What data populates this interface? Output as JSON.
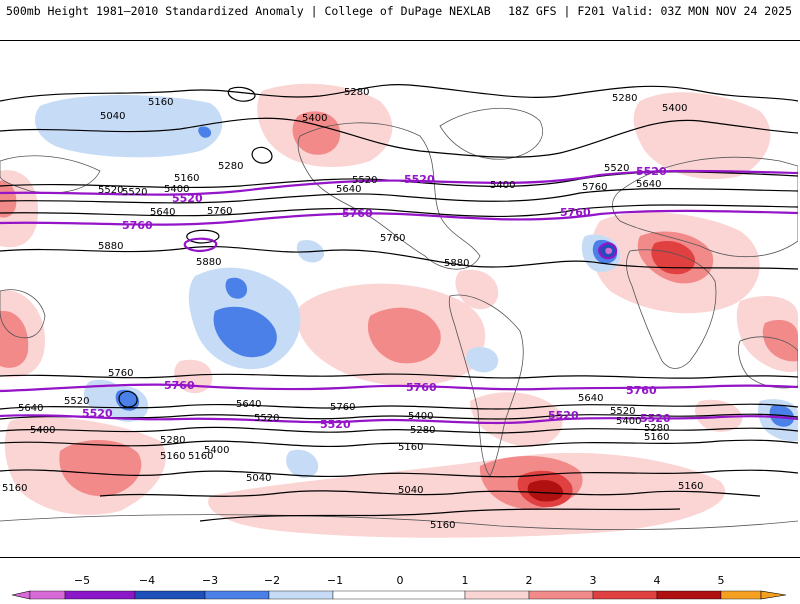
{
  "header": {
    "title": "500mb Height 1981–2010 Standardized Anomaly | College of DuPage NEXLAB",
    "run": "18Z GFS | F201 Valid: 03Z MON NOV 24 2025"
  },
  "colors": {
    "neg5": "#d86ad8",
    "neg4": "#8a18c8",
    "neg3": "#1f4fb8",
    "neg2": "#4a80e8",
    "neg1": "#c6dcf6",
    "zero": "#ffffff",
    "pos1": "#fbd4d4",
    "pos2": "#f38a8a",
    "pos3": "#e04040",
    "pos4": "#b01010",
    "pos5": "#f5a020",
    "highlight": "#9414c8",
    "contour": "#000000",
    "coast": "#555555"
  },
  "contour_labels_black": [
    "5280",
    "5160",
    "5040",
    "5400",
    "5280",
    "5160",
    "5520",
    "5400",
    "5640",
    "5520",
    "5640",
    "5760",
    "5880",
    "5880",
    "5520",
    "5400",
    "5760",
    "5880",
    "5280",
    "5400",
    "5520",
    "5640",
    "5760",
    "5760",
    "5640",
    "5520",
    "5400",
    "5640",
    "5520",
    "5400",
    "5280",
    "5160",
    "5400",
    "5280",
    "5160",
    "5040",
    "5160",
    "5040",
    "5160",
    "5160",
    "5640",
    "5520",
    "5400",
    "5280",
    "5160",
    "5760",
    "5160"
  ],
  "contour_labels_purple": [
    "5520",
    "5760",
    "5520",
    "5760",
    "5520",
    "5760",
    "5760",
    "5520",
    "5760",
    "5520",
    "5760",
    "5520",
    "5520"
  ],
  "colorbar": {
    "ticks": [
      "−5",
      "−4",
      "−3",
      "−2",
      "−1",
      "0",
      "1",
      "2",
      "3",
      "4",
      "5"
    ]
  }
}
